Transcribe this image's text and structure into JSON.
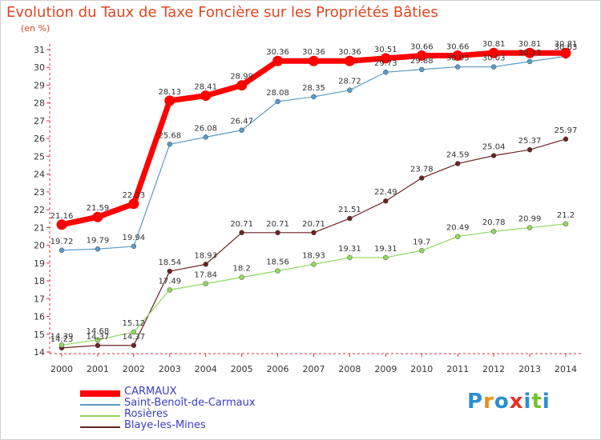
{
  "title": "Evolution du Taux de Taxe Foncière sur les Propriétés Bâties",
  "unit": "(en %)",
  "brand": "Proxiti",
  "chart_data": {
    "type": "line",
    "title": "Evolution du Taux de Taxe Foncière sur les Propriétés Bâties",
    "ylabel": "(en %)",
    "xlabel": "",
    "x": [
      "2000",
      "2001",
      "2002",
      "2003",
      "2004",
      "2005",
      "2006",
      "2007",
      "2008",
      "2009",
      "2010",
      "2011",
      "2012",
      "2013",
      "2014"
    ],
    "yticks": [
      "14",
      "15",
      "16",
      "17",
      "18",
      "19",
      "20",
      "21",
      "22",
      "23",
      "24",
      "25",
      "26",
      "27",
      "28",
      "29",
      "30",
      "31"
    ],
    "ylim": [
      14,
      31
    ],
    "grid": false,
    "legend": "bottom-left",
    "series": [
      {
        "name": "CARMAUX",
        "color": "#ff0000",
        "values": [
          21.16,
          21.59,
          22.33,
          28.13,
          28.41,
          28.99,
          30.36,
          30.36,
          30.36,
          30.51,
          30.66,
          30.66,
          30.81,
          30.81,
          30.81
        ],
        "labels": [
          "21.16",
          "21.59",
          "22.33",
          "28.13",
          "28.41",
          "28.99",
          "30.36",
          "30.36",
          "30.36",
          "30.51",
          "30.66",
          "30.66",
          "30.81",
          "30.81",
          "30.81"
        ]
      },
      {
        "name": "Saint-Benoît-de-Carmaux",
        "color": "#5a9ac8",
        "values": [
          19.72,
          19.79,
          19.94,
          25.68,
          26.08,
          26.47,
          28.08,
          28.35,
          28.72,
          29.73,
          29.88,
          30.03,
          30.03,
          30.33,
          30.63
        ],
        "labels": [
          "19.72",
          "19.79",
          "19.94",
          "25.68",
          "26.08",
          "26.47",
          "28.08",
          "28.35",
          "28.72",
          "29.73",
          "29.88",
          "30.03",
          "30.03",
          "30.33",
          "30.63"
        ]
      },
      {
        "name": "Rosières",
        "color": "#90d860",
        "values": [
          14.39,
          14.68,
          15.12,
          17.49,
          17.84,
          18.2,
          18.56,
          18.93,
          19.31,
          19.31,
          19.7,
          20.49,
          20.78,
          20.99,
          21.2
        ],
        "labels": [
          "14.39",
          "14.68",
          "15.12",
          "17.49",
          "17.84",
          "18.2",
          "18.56",
          "18.93",
          "19.31",
          "19.31",
          "19.7",
          "20.49",
          "20.78",
          "20.99",
          "21.2"
        ]
      },
      {
        "name": "Blaye-les-Mines",
        "color": "#6b2222",
        "values": [
          14.23,
          14.37,
          14.37,
          18.54,
          18.93,
          20.71,
          20.71,
          20.71,
          21.51,
          22.49,
          23.78,
          24.59,
          25.04,
          25.37,
          25.97
        ],
        "labels": [
          "14.23",
          "14.37",
          "14.37",
          "18.54",
          "18.93",
          "20.71",
          "20.71",
          "20.71",
          "21.51",
          "22.49",
          "23.78",
          "24.59",
          "25.04",
          "25.37",
          "25.97"
        ]
      }
    ]
  }
}
